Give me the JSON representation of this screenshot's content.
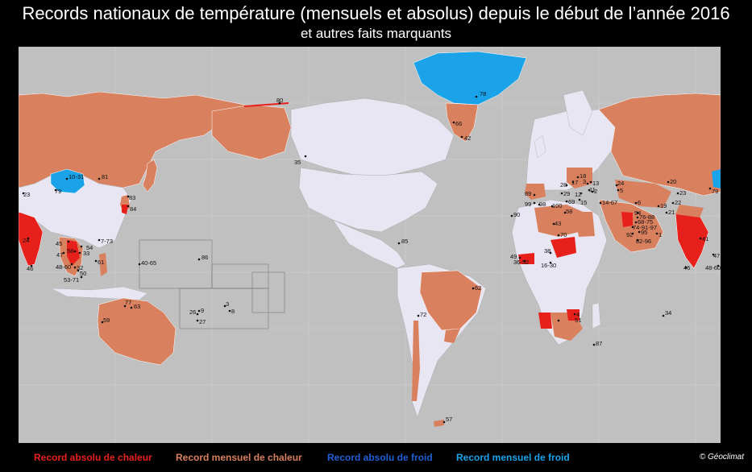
{
  "header": {
    "title": "Records nationaux de température (mensuels et absolus) depuis le début de l’année 2016",
    "subtitle": "et autres faits marquants"
  },
  "legend": {
    "absolute_heat": {
      "label": "Record absolu de chaleur",
      "color": "#e8201c"
    },
    "monthly_heat": {
      "label": "Record mensuel de chaleur",
      "color": "#d9805f"
    },
    "absolute_cold": {
      "label": "Record absolu de froid",
      "color": "#1f5fd6"
    },
    "monthly_cold": {
      "label": "Record mensuel de froid",
      "color": "#1aa3e8"
    }
  },
  "colors": {
    "ocean": "#c0c0c0",
    "land": "#e8e6f2",
    "monthly_heat": "#d9805f",
    "absolute_heat": "#e8201c",
    "monthly_cold": "#1aa3e8"
  },
  "copyright": "© Géoclimat",
  "labels": [
    "80",
    "35",
    "78",
    "66",
    "42",
    "10-31",
    "81",
    "79",
    "23",
    "83",
    "84",
    "24",
    "45",
    "54",
    "33",
    "47",
    "58",
    "61",
    "7-73",
    "48-60",
    "32",
    "50",
    "53-71",
    "46",
    "40-65",
    "86",
    "77",
    "63",
    "59",
    "26",
    "9",
    "27",
    "3",
    "8",
    "85",
    "72",
    "62",
    "57",
    "18",
    "28",
    "17",
    "13",
    "3",
    "11",
    "2",
    "24",
    "5",
    "6",
    "20",
    "23",
    "22",
    "19",
    "21",
    "79",
    "89",
    "29",
    "99",
    "98",
    "100",
    "69",
    "15",
    "12",
    "14-67",
    "90",
    "43",
    "58",
    "70",
    "94",
    "76-88",
    "68-75",
    "74-91-97",
    "95",
    "92",
    "1",
    "82-96",
    "38",
    "49",
    "36-52",
    "16-30",
    "51",
    "4",
    "87",
    "34",
    "41",
    "47",
    "46",
    "48-60"
  ]
}
